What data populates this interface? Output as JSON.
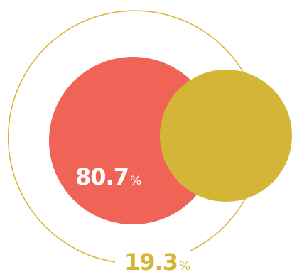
{
  "chart_data": {
    "type": "pie",
    "title": "",
    "categories": [
      "",
      ""
    ],
    "values": [
      80.7,
      19.3
    ],
    "series": [
      {
        "value": 80.7,
        "label": "80.7",
        "unit": "%",
        "color": "#f06457",
        "label_color": "#ffffff"
      },
      {
        "value": 19.3,
        "label": "19.3",
        "unit": "%",
        "color": "#d4b536",
        "label_color": "#d4b536"
      }
    ],
    "ring_color": "#d4b536",
    "legend": "none",
    "grid": false
  }
}
